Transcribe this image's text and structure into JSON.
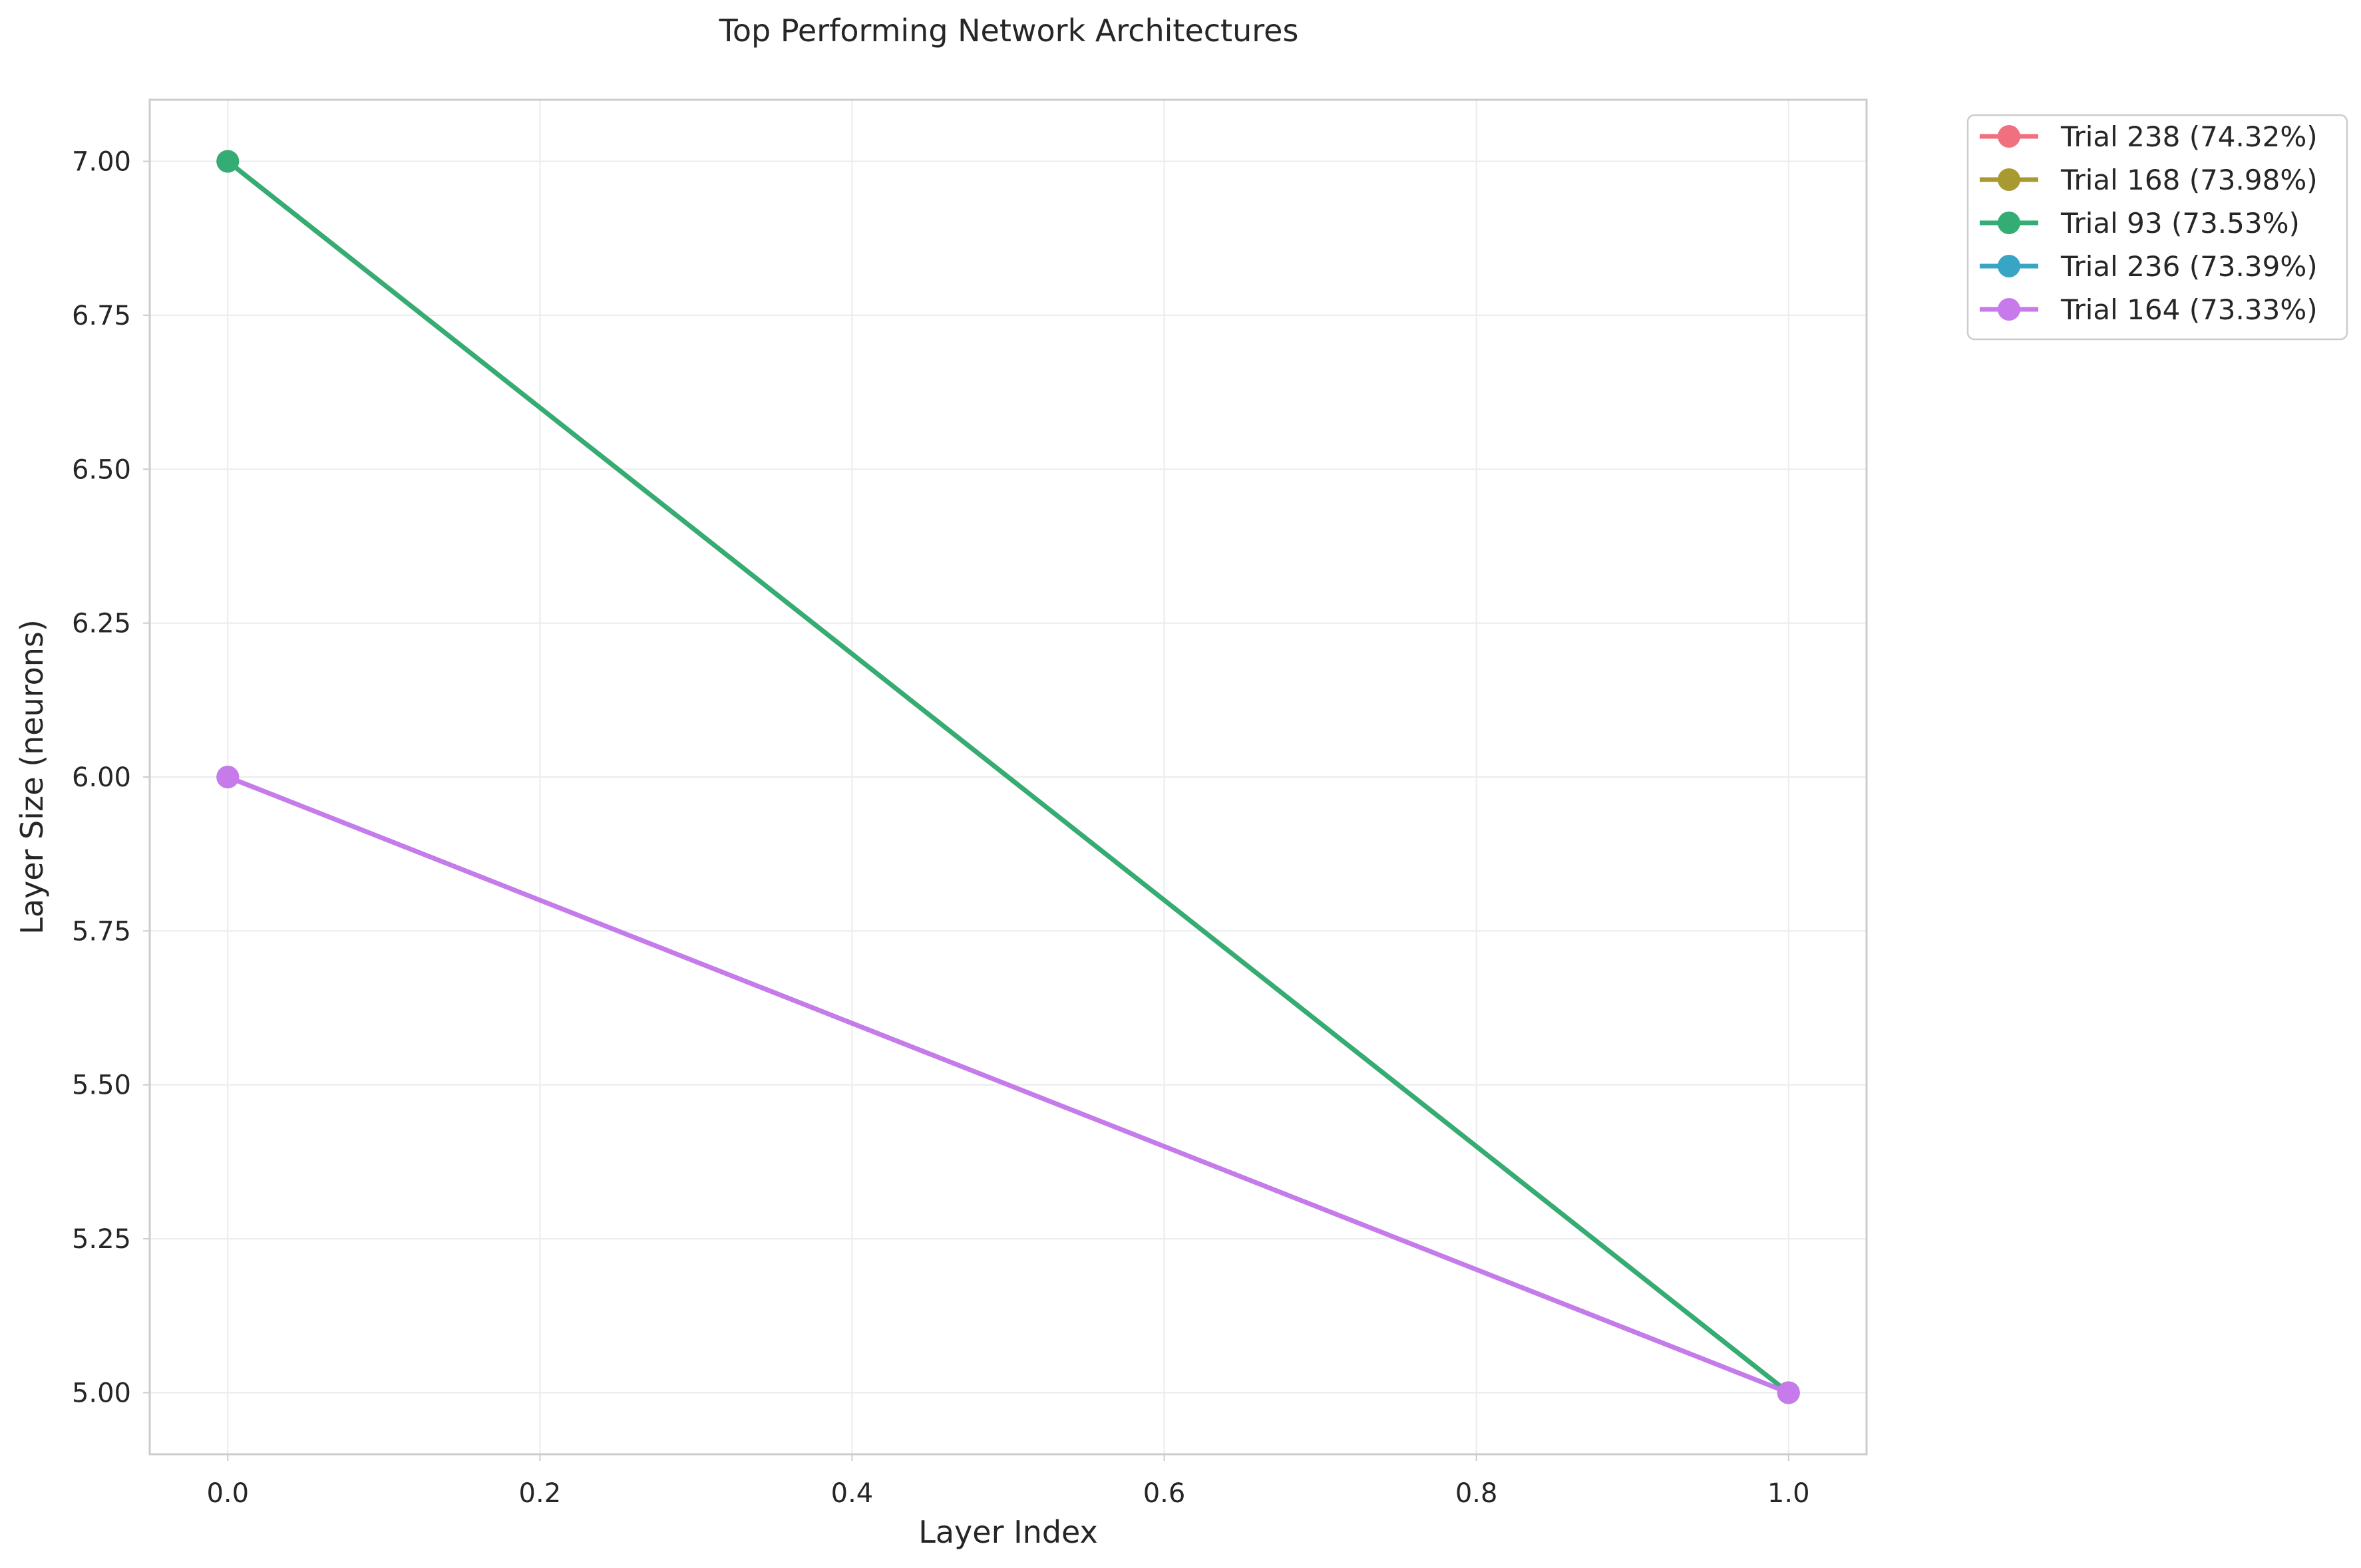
{
  "chart_data": {
    "type": "line",
    "title": "Top Performing Network Architectures",
    "xlabel": "Layer Index",
    "ylabel": "Layer Size (neurons)",
    "xlim": [
      -0.05,
      1.05
    ],
    "ylim": [
      4.9,
      7.1
    ],
    "xticks": [
      0.0,
      0.2,
      0.4,
      0.6,
      0.8,
      1.0
    ],
    "xtick_labels": [
      "0.0",
      "0.2",
      "0.4",
      "0.6",
      "0.8",
      "1.0"
    ],
    "yticks": [
      5.0,
      5.25,
      5.5,
      5.75,
      6.0,
      6.25,
      6.5,
      6.75,
      7.0
    ],
    "ytick_labels": [
      "5.00",
      "5.25",
      "5.50",
      "5.75",
      "6.00",
      "6.25",
      "6.50",
      "6.75",
      "7.00"
    ],
    "grid": true,
    "legend_position": "outside top-right",
    "series": [
      {
        "name": "Trial 238 (74.32%)",
        "color": "#f0707f",
        "x": [
          0,
          1
        ],
        "y": [
          7,
          5
        ]
      },
      {
        "name": "Trial 168 (73.98%)",
        "color": "#a89a30",
        "x": [
          0,
          1
        ],
        "y": [
          7,
          5
        ]
      },
      {
        "name": "Trial 93 (73.53%)",
        "color": "#33ad74",
        "x": [
          0,
          1
        ],
        "y": [
          7,
          5
        ]
      },
      {
        "name": "Trial 236 (73.39%)",
        "color": "#38a5c4",
        "x": [
          0,
          1
        ],
        "y": [
          6,
          5
        ]
      },
      {
        "name": "Trial 164 (73.33%)",
        "color": "#c77aea",
        "x": [
          0,
          1
        ],
        "y": [
          6,
          5
        ]
      }
    ]
  }
}
